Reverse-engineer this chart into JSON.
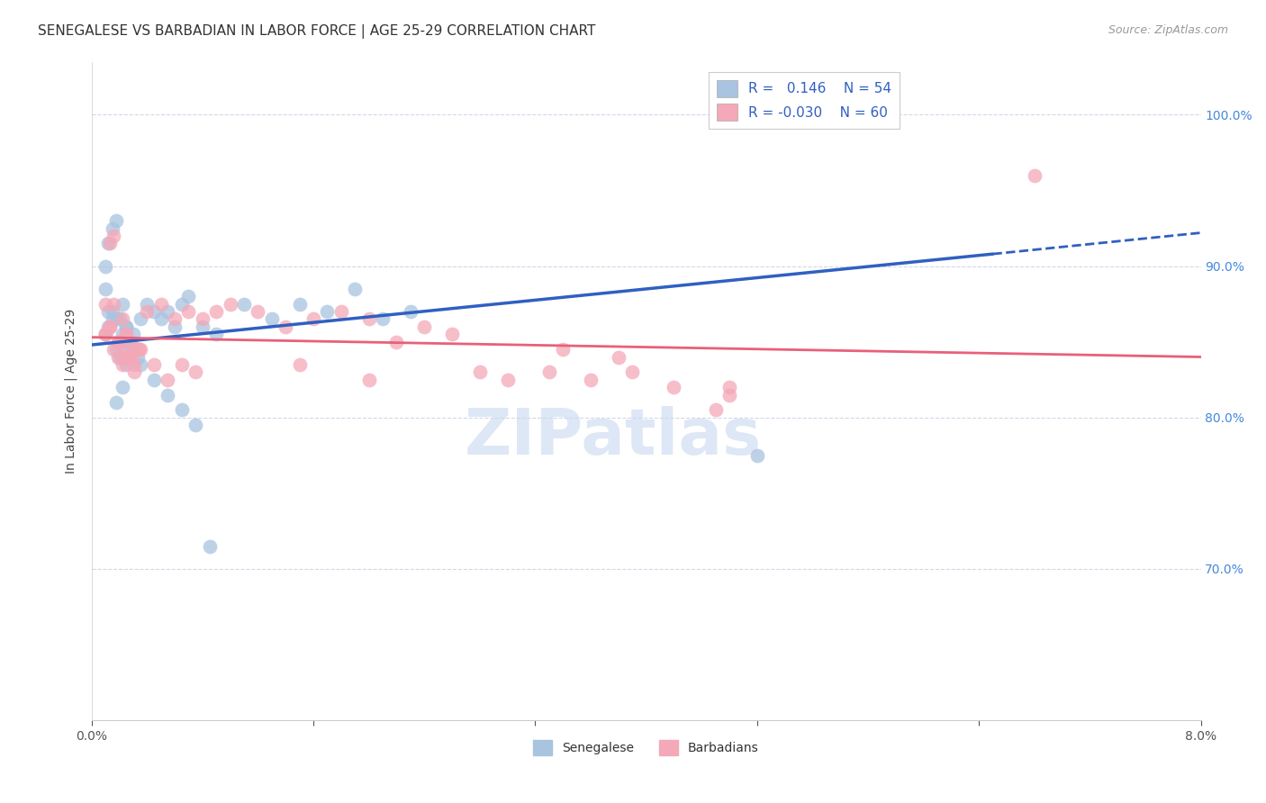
{
  "title": "SENEGALESE VS BARBADIAN IN LABOR FORCE | AGE 25-29 CORRELATION CHART",
  "source": "Source: ZipAtlas.com",
  "ylabel": "In Labor Force | Age 25-29",
  "xlim": [
    0.0,
    8.0
  ],
  "ylim": [
    60.0,
    103.5
  ],
  "yticks": [
    70.0,
    80.0,
    90.0,
    100.0
  ],
  "ytick_labels": [
    "70.0%",
    "80.0%",
    "90.0%",
    "100.0%"
  ],
  "blue_color": "#a8c4e0",
  "pink_color": "#f4a8b8",
  "blue_line_color": "#3060c0",
  "pink_line_color": "#e8607a",
  "blue_R": 0.146,
  "blue_N": 54,
  "pink_R": -0.03,
  "pink_N": 60,
  "watermark": "ZIPatlas",
  "watermark_color": "#c8d8f0",
  "title_fontsize": 11,
  "axis_label_fontsize": 10,
  "tick_fontsize": 10,
  "legend_fontsize": 11,
  "source_fontsize": 9,
  "bg_color": "#ffffff",
  "grid_color": "#d0d8e8",
  "right_axis_color": "#4488dd",
  "blue_scatter_x": [
    0.1,
    0.12,
    0.15,
    0.18,
    0.2,
    0.22,
    0.25,
    0.28,
    0.3,
    0.1,
    0.12,
    0.15,
    0.18,
    0.2,
    0.22,
    0.25,
    0.28,
    0.3,
    0.33,
    0.35,
    0.1,
    0.12,
    0.15,
    0.18,
    0.2,
    0.22,
    0.25,
    0.28,
    0.3,
    0.4,
    0.45,
    0.5,
    0.55,
    0.6,
    0.65,
    0.7,
    0.8,
    0.9,
    1.1,
    1.3,
    1.5,
    1.7,
    1.9,
    2.1,
    2.3,
    0.18,
    0.22,
    0.35,
    0.45,
    0.55,
    0.65,
    0.75,
    0.85,
    4.8
  ],
  "blue_scatter_y": [
    85.5,
    87.0,
    86.5,
    84.5,
    84.0,
    87.5,
    86.0,
    85.0,
    84.5,
    88.5,
    86.0,
    87.0,
    86.5,
    85.0,
    84.0,
    83.5,
    84.5,
    85.5,
    84.0,
    86.5,
    90.0,
    91.5,
    92.5,
    93.0,
    86.5,
    85.5,
    86.0,
    85.0,
    84.5,
    87.5,
    87.0,
    86.5,
    87.0,
    86.0,
    87.5,
    88.0,
    86.0,
    85.5,
    87.5,
    86.5,
    87.5,
    87.0,
    88.5,
    86.5,
    87.0,
    81.0,
    82.0,
    83.5,
    82.5,
    81.5,
    80.5,
    79.5,
    71.5,
    77.5
  ],
  "pink_scatter_x": [
    0.1,
    0.13,
    0.16,
    0.19,
    0.22,
    0.25,
    0.28,
    0.31,
    0.34,
    0.1,
    0.13,
    0.16,
    0.19,
    0.22,
    0.25,
    0.28,
    0.31,
    0.34,
    0.1,
    0.13,
    0.16,
    0.19,
    0.22,
    0.25,
    0.28,
    0.31,
    0.4,
    0.5,
    0.6,
    0.7,
    0.8,
    0.9,
    1.0,
    1.2,
    1.4,
    1.6,
    1.8,
    2.0,
    2.2,
    2.4,
    2.6,
    0.35,
    0.45,
    0.55,
    0.65,
    0.75,
    1.5,
    2.0,
    2.8,
    3.0,
    3.3,
    3.6,
    3.9,
    4.2,
    4.6,
    3.4,
    3.8,
    4.6,
    4.5,
    6.8
  ],
  "pink_scatter_y": [
    85.5,
    86.0,
    87.5,
    85.0,
    84.5,
    85.5,
    84.0,
    83.5,
    84.5,
    87.5,
    91.5,
    92.0,
    85.0,
    86.5,
    85.5,
    84.0,
    83.0,
    84.5,
    85.5,
    86.0,
    84.5,
    84.0,
    83.5,
    84.0,
    85.0,
    84.5,
    87.0,
    87.5,
    86.5,
    87.0,
    86.5,
    87.0,
    87.5,
    87.0,
    86.0,
    86.5,
    87.0,
    86.5,
    85.0,
    86.0,
    85.5,
    84.5,
    83.5,
    82.5,
    83.5,
    83.0,
    83.5,
    82.5,
    83.0,
    82.5,
    83.0,
    82.5,
    83.0,
    82.0,
    81.5,
    84.5,
    84.0,
    82.0,
    80.5,
    96.0
  ],
  "blue_line_x0": 0.0,
  "blue_line_y0": 84.8,
  "blue_line_x1": 6.5,
  "blue_line_y1": 90.8,
  "blue_dash_x0": 6.5,
  "blue_dash_y0": 90.8,
  "blue_dash_x1": 8.0,
  "blue_dash_y1": 92.2,
  "pink_line_x0": 0.0,
  "pink_line_y0": 85.3,
  "pink_line_x1": 8.0,
  "pink_line_y1": 84.0
}
